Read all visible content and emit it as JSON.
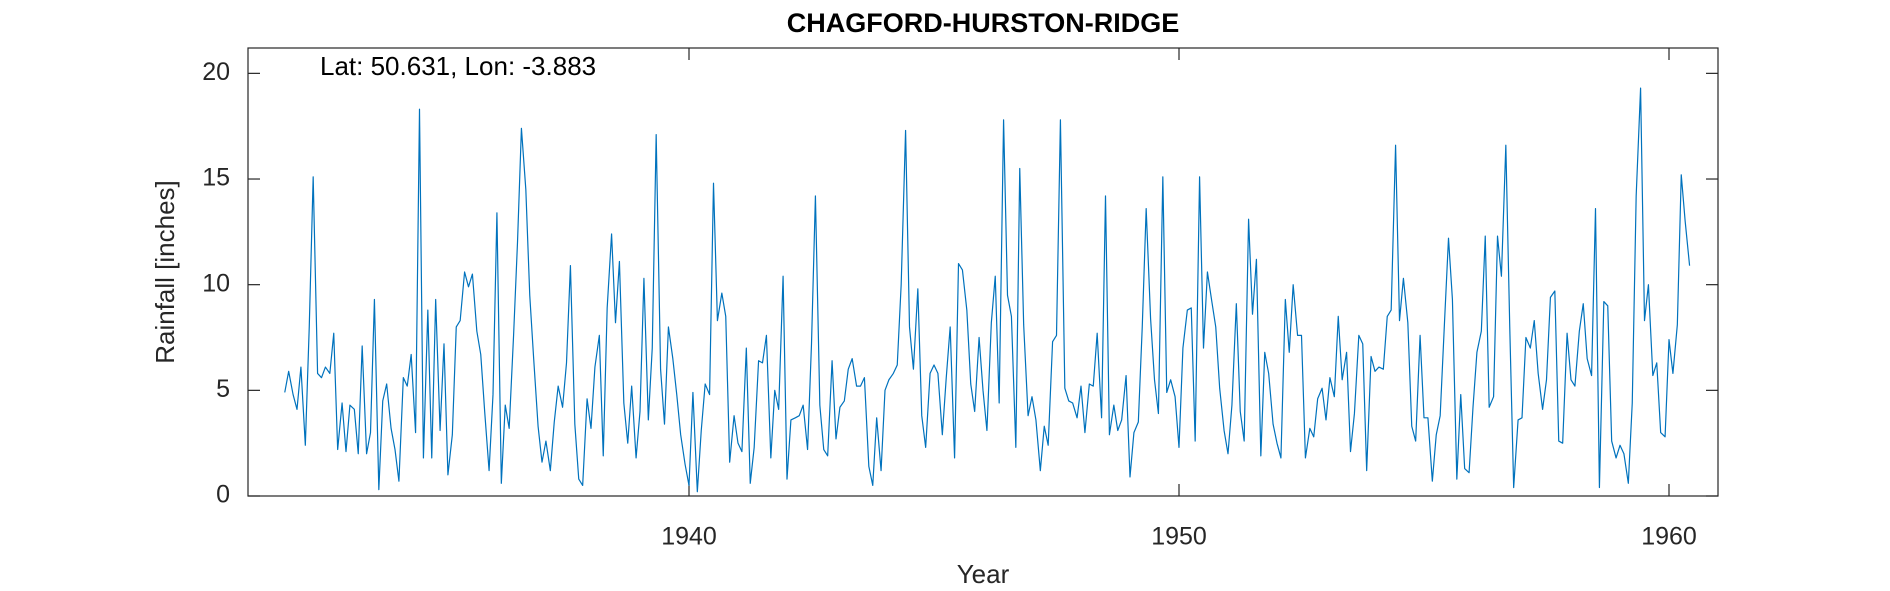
{
  "chart_data": {
    "type": "line",
    "title": "CHAGFORD-HURSTON-RIDGE",
    "annotation": "Lat: 50.631, Lon: -3.883",
    "xlabel": "Year",
    "ylabel": "Rainfall [inches]",
    "xlim": [
      1931,
      1961
    ],
    "ylim": [
      0,
      21.2
    ],
    "xticks": [
      1940,
      1950,
      1960
    ],
    "yticks": [
      0,
      5,
      10,
      15,
      20
    ],
    "grid": false,
    "x": [
      1931.75,
      1931.83,
      1931.92,
      1932,
      1932.08,
      1932.17,
      1932.25,
      1932.33,
      1932.42,
      1932.5,
      1932.58,
      1932.67,
      1932.75,
      1932.83,
      1932.92,
      1933,
      1933.08,
      1933.17,
      1933.25,
      1933.33,
      1933.42,
      1933.5,
      1933.58,
      1933.67,
      1933.75,
      1933.83,
      1933.92,
      1934,
      1934.08,
      1934.17,
      1934.25,
      1934.33,
      1934.42,
      1934.5,
      1934.58,
      1934.67,
      1934.75,
      1934.83,
      1934.92,
      1935,
      1935.08,
      1935.17,
      1935.25,
      1935.33,
      1935.42,
      1935.5,
      1935.58,
      1935.67,
      1935.75,
      1935.83,
      1935.92,
      1936,
      1936.08,
      1936.17,
      1936.25,
      1936.33,
      1936.42,
      1936.5,
      1936.58,
      1936.67,
      1936.75,
      1936.83,
      1936.92,
      1937,
      1937.08,
      1937.17,
      1937.25,
      1937.33,
      1937.42,
      1937.5,
      1937.58,
      1937.67,
      1937.75,
      1937.83,
      1937.92,
      1938,
      1938.08,
      1938.17,
      1938.25,
      1938.33,
      1938.42,
      1938.5,
      1938.58,
      1938.67,
      1938.75,
      1938.83,
      1938.92,
      1939,
      1939.08,
      1939.17,
      1939.25,
      1939.33,
      1939.42,
      1939.5,
      1939.58,
      1939.67,
      1939.75,
      1939.83,
      1939.92,
      1940,
      1940.08,
      1940.17,
      1940.25,
      1940.33,
      1940.42,
      1940.5,
      1940.58,
      1940.67,
      1940.75,
      1940.83,
      1940.92,
      1941,
      1941.08,
      1941.17,
      1941.25,
      1941.33,
      1941.42,
      1941.5,
      1941.58,
      1941.67,
      1941.75,
      1941.83,
      1941.92,
      1942,
      1942.08,
      1942.17,
      1942.25,
      1942.33,
      1942.42,
      1942.5,
      1942.58,
      1942.67,
      1942.75,
      1942.83,
      1942.92,
      1943,
      1943.08,
      1943.17,
      1943.25,
      1943.33,
      1943.42,
      1943.5,
      1943.58,
      1943.67,
      1943.75,
      1943.83,
      1943.92,
      1944,
      1944.08,
      1944.17,
      1944.25,
      1944.33,
      1944.42,
      1944.5,
      1944.58,
      1944.67,
      1944.75,
      1944.83,
      1944.92,
      1945,
      1945.08,
      1945.17,
      1945.25,
      1945.33,
      1945.42,
      1945.5,
      1945.58,
      1945.67,
      1945.75,
      1945.83,
      1945.92,
      1946,
      1946.08,
      1946.17,
      1946.25,
      1946.33,
      1946.42,
      1946.5,
      1946.58,
      1946.67,
      1946.75,
      1946.83,
      1946.92,
      1947,
      1947.08,
      1947.17,
      1947.25,
      1947.33,
      1947.42,
      1947.5,
      1947.58,
      1947.67,
      1947.75,
      1947.83,
      1947.92,
      1948,
      1948.08,
      1948.17,
      1948.25,
      1948.33,
      1948.42,
      1948.5,
      1948.58,
      1948.67,
      1948.75,
      1948.83,
      1948.92,
      1949,
      1949.08,
      1949.17,
      1949.25,
      1949.33,
      1949.42,
      1949.5,
      1949.58,
      1949.67,
      1949.75,
      1949.83,
      1949.92,
      1950,
      1950.08,
      1950.17,
      1950.25,
      1950.33,
      1950.42,
      1950.5,
      1950.58,
      1950.67,
      1950.75,
      1950.83,
      1950.92,
      1951,
      1951.08,
      1951.17,
      1951.25,
      1951.33,
      1951.42,
      1951.5,
      1951.58,
      1951.67,
      1951.75,
      1951.83,
      1951.92,
      1952,
      1952.08,
      1952.17,
      1952.25,
      1952.33,
      1952.42,
      1952.5,
      1952.58,
      1952.67,
      1952.75,
      1952.83,
      1952.92,
      1953,
      1953.08,
      1953.17,
      1953.25,
      1953.33,
      1953.42,
      1953.5,
      1953.58,
      1953.67,
      1953.75,
      1953.83,
      1953.92,
      1954,
      1954.08,
      1954.17,
      1954.25,
      1954.33,
      1954.42,
      1954.5,
      1954.58,
      1954.67,
      1954.75,
      1954.83,
      1954.92,
      1955,
      1955.08,
      1955.17,
      1955.25,
      1955.33,
      1955.42,
      1955.5,
      1955.58,
      1955.67,
      1955.75,
      1955.83,
      1955.92,
      1956,
      1956.08,
      1956.17,
      1956.25,
      1956.33,
      1956.42,
      1956.5,
      1956.58,
      1956.67,
      1956.75,
      1956.83,
      1956.92,
      1957,
      1957.08,
      1957.17,
      1957.25,
      1957.33,
      1957.42,
      1957.5,
      1957.58,
      1957.67,
      1957.75,
      1957.83,
      1957.92,
      1958,
      1958.08,
      1958.17,
      1958.25,
      1958.33,
      1958.42,
      1958.5,
      1958.58,
      1958.67,
      1958.75,
      1958.83,
      1958.92,
      1959,
      1959.08,
      1959.17,
      1959.25,
      1959.33,
      1959.42,
      1959.5,
      1959.58,
      1959.67,
      1959.75,
      1959.83,
      1959.92,
      1960,
      1960.08,
      1960.17,
      1960.25,
      1960.33,
      1960.42
    ],
    "series": [
      {
        "color": "#0072bd",
        "values": [
          4.9,
          5.9,
          4.8,
          4.1,
          6.1,
          2.4,
          8.0,
          15.1,
          5.8,
          5.6,
          6.1,
          5.8,
          7.7,
          2.2,
          4.4,
          2.1,
          4.3,
          4.1,
          2.0,
          7.1,
          2.0,
          3.0,
          9.3,
          0.3,
          4.5,
          5.3,
          3.2,
          2.2,
          0.7,
          5.6,
          5.2,
          6.7,
          3.0,
          18.3,
          1.8,
          8.8,
          1.8,
          9.3,
          3.1,
          7.2,
          1.0,
          2.9,
          8.0,
          8.3,
          10.6,
          9.9,
          10.5,
          7.8,
          6.7,
          4.0,
          1.2,
          4.8,
          13.4,
          0.6,
          4.3,
          3.2,
          7.6,
          12.0,
          17.4,
          14.5,
          9.5,
          6.5,
          3.3,
          1.6,
          2.6,
          1.2,
          3.5,
          5.2,
          4.2,
          6.3,
          10.9,
          3.4,
          0.8,
          0.5,
          4.6,
          3.2,
          6.1,
          7.6,
          1.9,
          8.9,
          12.4,
          8.2,
          11.1,
          4.4,
          2.5,
          5.2,
          1.8,
          4.0,
          10.3,
          3.6,
          7.0,
          17.1,
          6.0,
          3.4,
          8.0,
          6.5,
          4.8,
          2.9,
          1.5,
          0.5,
          4.9,
          0.2,
          3.1,
          5.3,
          4.8,
          14.8,
          8.3,
          9.6,
          8.5,
          1.6,
          3.8,
          2.5,
          2.1,
          7.0,
          0.6,
          2.3,
          6.4,
          6.3,
          7.6,
          1.8,
          5.0,
          4.1,
          10.4,
          0.8,
          3.6,
          3.7,
          3.8,
          4.3,
          2.2,
          7.2,
          14.2,
          4.3,
          2.2,
          1.9,
          6.4,
          2.7,
          4.2,
          4.5,
          6.0,
          6.5,
          5.2,
          5.2,
          5.6,
          1.4,
          0.5,
          3.7,
          1.2,
          5.0,
          5.5,
          5.8,
          6.2,
          10.0,
          17.3,
          8.0,
          6.0,
          9.8,
          3.8,
          2.3,
          5.8,
          6.2,
          5.8,
          2.9,
          5.6,
          8.0,
          1.8,
          11.0,
          10.7,
          8.8,
          5.3,
          4.0,
          7.5,
          5.0,
          3.1,
          8.2,
          10.4,
          4.4,
          17.8,
          9.5,
          8.5,
          2.3,
          15.5,
          8.1,
          3.8,
          4.7,
          3.6,
          1.2,
          3.3,
          2.4,
          7.3,
          7.6,
          17.8,
          5.1,
          4.5,
          4.4,
          3.7,
          5.2,
          3.0,
          5.3,
          5.2,
          7.7,
          3.7,
          14.2,
          2.9,
          4.3,
          3.1,
          3.6,
          5.7,
          0.9,
          3.0,
          3.5,
          8.0,
          13.6,
          8.4,
          5.5,
          3.9,
          15.1,
          4.9,
          5.5,
          4.7,
          2.3,
          7.0,
          8.8,
          8.9,
          2.6,
          15.1,
          7.0,
          10.6,
          9.2,
          8.0,
          5.1,
          3.1,
          2.0,
          4.3,
          9.1,
          4.0,
          2.6,
          13.1,
          8.6,
          11.2,
          1.9,
          6.8,
          5.8,
          3.4,
          2.5,
          1.8,
          9.3,
          6.8,
          10.0,
          7.6,
          7.6,
          1.8,
          3.2,
          2.8,
          4.6,
          5.1,
          3.6,
          5.6,
          4.7,
          8.5,
          5.5,
          6.8,
          2.1,
          3.9,
          7.6,
          7.2,
          1.2,
          6.6,
          5.9,
          6.1,
          6.0,
          8.5,
          8.8,
          16.6,
          8.3,
          10.3,
          8.2,
          3.3,
          2.6,
          7.6,
          3.7,
          3.7,
          0.7,
          2.9,
          3.8,
          8.3,
          12.2,
          9.3,
          0.8,
          4.8,
          1.3,
          1.1,
          4.2,
          6.8,
          7.8,
          12.3,
          4.2,
          4.7,
          12.3,
          10.4,
          16.6,
          8.0,
          0.4,
          3.6,
          3.7,
          7.5,
          7.0,
          8.3,
          5.8,
          4.1,
          5.5,
          9.4,
          9.7,
          2.6,
          2.5,
          7.7,
          5.5,
          5.2,
          7.8,
          9.1,
          6.5,
          5.7,
          13.6,
          0.4,
          9.2,
          9.0,
          2.6,
          1.8,
          2.4,
          2.0,
          0.6,
          4.4,
          14.2,
          19.3,
          8.3,
          10.0,
          5.7,
          6.3,
          3.0,
          2.8,
          7.4,
          5.8,
          8.1,
          15.2,
          13.0,
          10.9
        ]
      }
    ]
  }
}
